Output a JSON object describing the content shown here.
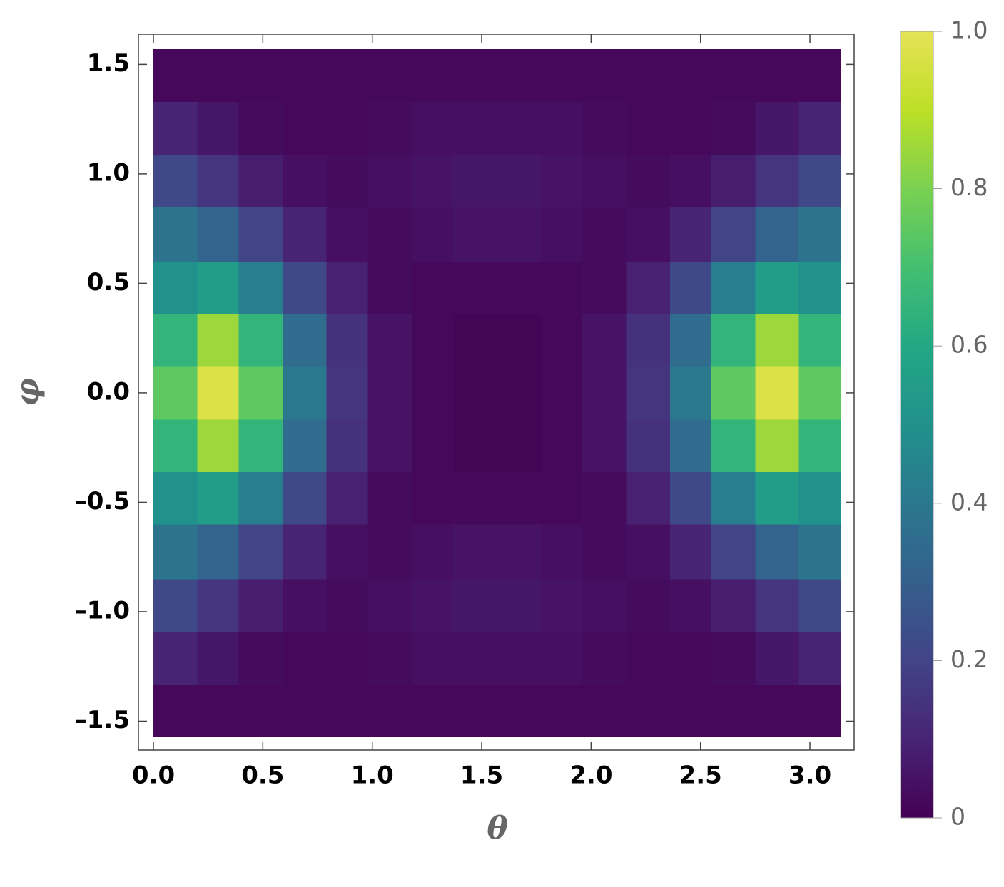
{
  "chart_data": {
    "type": "heatmap",
    "colormap": "viridis",
    "xlabel": "θ",
    "ylabel": "φ",
    "xlim": [
      -0.0685,
      3.202
    ],
    "ylim": [
      -1.632,
      1.638
    ],
    "xticks": [
      {
        "value": 0,
        "label": "0.0"
      },
      0.5,
      {
        "value": 1,
        "label": "1.0"
      },
      1.5,
      {
        "value": 2,
        "label": "2.0"
      },
      2.5,
      {
        "value": 3,
        "label": "3.0"
      }
    ],
    "yticks": [
      {
        "value": -1.5,
        "label": "–1.5"
      },
      {
        "value": -1,
        "label": "–1.0"
      },
      {
        "value": -0.5,
        "label": "–0.5"
      },
      {
        "value": 0,
        "label": "0.0"
      },
      0.5,
      {
        "value": 1,
        "label": "1.0"
      },
      1.5
    ],
    "xbins": [
      0,
      0.2,
      0.39,
      0.59,
      0.79,
      0.98,
      1.18,
      1.37,
      1.57,
      1.77,
      1.96,
      2.16,
      2.36,
      2.55,
      2.75,
      2.95,
      3.14
    ],
    "ybins": [
      -1.57,
      -1.33,
      -1.09,
      -0.85,
      -0.6,
      -0.36,
      -0.12,
      0.12,
      0.36,
      0.6,
      0.85,
      1.09,
      1.33,
      1.57
    ],
    "z": [
      [
        0.02,
        0.02,
        0.02,
        0.02,
        0.02,
        0.02,
        0.02,
        0.02,
        0.02,
        0.02,
        0.02,
        0.02,
        0.02,
        0.02,
        0.02,
        0.02
      ],
      [
        0.1,
        0.06,
        0.03,
        0.02,
        0.02,
        0.03,
        0.04,
        0.04,
        0.04,
        0.04,
        0.03,
        0.02,
        0.02,
        0.03,
        0.06,
        0.1
      ],
      [
        0.22,
        0.15,
        0.08,
        0.04,
        0.03,
        0.04,
        0.05,
        0.06,
        0.06,
        0.05,
        0.04,
        0.03,
        0.04,
        0.08,
        0.15,
        0.22
      ],
      [
        0.38,
        0.32,
        0.2,
        0.1,
        0.04,
        0.03,
        0.04,
        0.05,
        0.05,
        0.04,
        0.03,
        0.04,
        0.1,
        0.2,
        0.32,
        0.38
      ],
      [
        0.5,
        0.55,
        0.42,
        0.22,
        0.09,
        0.03,
        0.02,
        0.02,
        0.02,
        0.02,
        0.03,
        0.09,
        0.22,
        0.42,
        0.55,
        0.5
      ],
      [
        0.65,
        0.85,
        0.65,
        0.35,
        0.14,
        0.05,
        0.02,
        0.01,
        0.01,
        0.02,
        0.05,
        0.14,
        0.35,
        0.65,
        0.85,
        0.65
      ],
      [
        0.75,
        0.97,
        0.75,
        0.4,
        0.15,
        0.05,
        0.02,
        0.01,
        0.01,
        0.02,
        0.05,
        0.15,
        0.4,
        0.75,
        0.97,
        0.75
      ],
      [
        0.65,
        0.85,
        0.65,
        0.35,
        0.14,
        0.05,
        0.02,
        0.01,
        0.01,
        0.02,
        0.05,
        0.14,
        0.35,
        0.65,
        0.85,
        0.65
      ],
      [
        0.5,
        0.55,
        0.42,
        0.22,
        0.09,
        0.03,
        0.02,
        0.02,
        0.02,
        0.02,
        0.03,
        0.09,
        0.22,
        0.42,
        0.55,
        0.5
      ],
      [
        0.38,
        0.32,
        0.2,
        0.1,
        0.04,
        0.03,
        0.04,
        0.05,
        0.05,
        0.04,
        0.03,
        0.04,
        0.1,
        0.2,
        0.32,
        0.38
      ],
      [
        0.22,
        0.15,
        0.08,
        0.04,
        0.03,
        0.04,
        0.05,
        0.06,
        0.06,
        0.05,
        0.04,
        0.03,
        0.04,
        0.08,
        0.15,
        0.22
      ],
      [
        0.1,
        0.06,
        0.03,
        0.02,
        0.02,
        0.03,
        0.04,
        0.04,
        0.04,
        0.04,
        0.03,
        0.02,
        0.02,
        0.03,
        0.06,
        0.1
      ],
      [
        0.02,
        0.02,
        0.02,
        0.02,
        0.02,
        0.02,
        0.02,
        0.02,
        0.02,
        0.02,
        0.02,
        0.02,
        0.02,
        0.02,
        0.02,
        0.02
      ]
    ],
    "zlim": [
      0,
      1
    ],
    "zticks": [
      0,
      0.2,
      0.4,
      0.6,
      0.8,
      {
        "value": 1,
        "label": "1.0"
      }
    ]
  }
}
